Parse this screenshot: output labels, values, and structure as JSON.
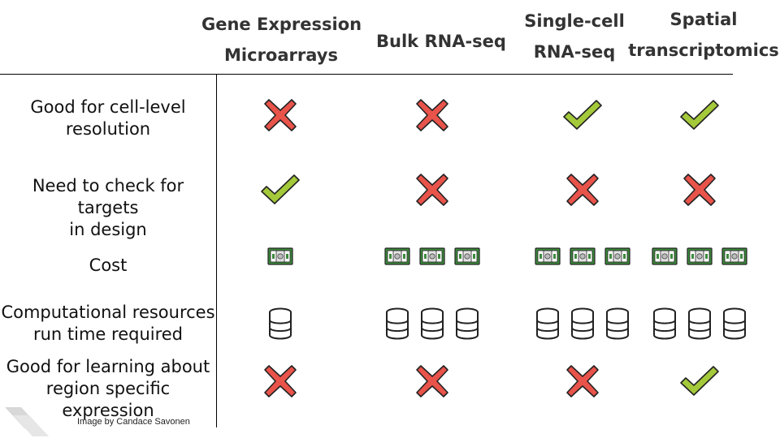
{
  "columns": [
    {
      "line1": "Gene Expression",
      "line2": "Microarrays"
    },
    {
      "line1": "Bulk RNA-seq",
      "line2": ""
    },
    {
      "line1": "Single-cell",
      "line2": "RNA-seq"
    },
    {
      "line1": "Spatial",
      "line2": "transcriptomics"
    }
  ],
  "rows": [
    {
      "label1": "Good for cell-level",
      "label2": "resolution",
      "cells": [
        "cross",
        "cross",
        "check",
        "check"
      ]
    },
    {
      "label1": "Need to check for targets",
      "label2": "in design",
      "cells": [
        "check",
        "cross",
        "cross",
        "cross"
      ]
    },
    {
      "label1": "Cost",
      "label2": "",
      "cells": [
        1,
        3,
        3,
        3
      ],
      "icon": "money-icon"
    },
    {
      "label1": "Computational resources",
      "label2": "run time required",
      "cells": [
        1,
        3,
        3,
        3
      ],
      "icon": "database-icon"
    },
    {
      "label1": "Good for learning about",
      "label2": "region specific expression",
      "cells": [
        "cross",
        "cross",
        "cross",
        "check"
      ]
    }
  ],
  "credit": "Image by Candace Savonen",
  "colors": {
    "check": "#a4c93a",
    "cross": "#e8534a",
    "money": "#3d8b3d"
  }
}
